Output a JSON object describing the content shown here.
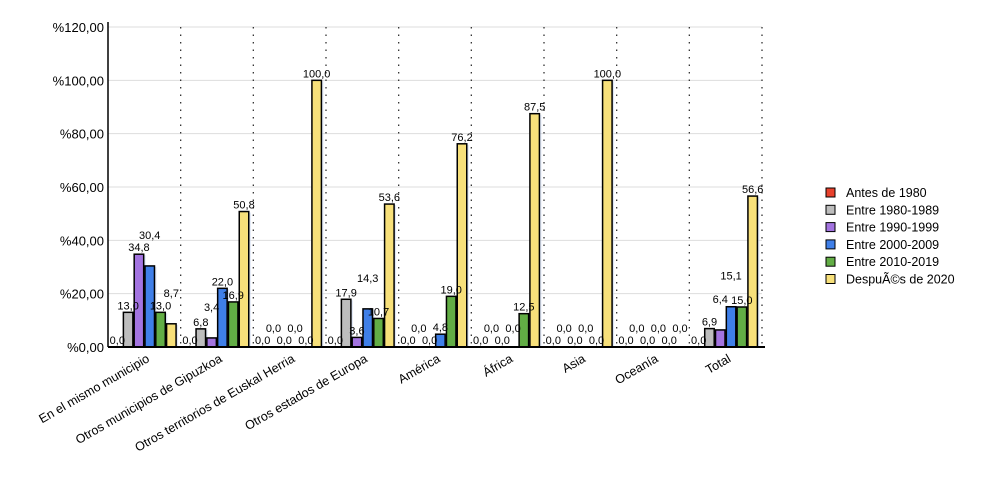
{
  "chart_data": {
    "type": "bar",
    "title": "",
    "xlabel": "",
    "ylabel": "",
    "ylim": [
      0,
      120
    ],
    "yticks": [
      "%0,00",
      "%20,00",
      "%40,00",
      "%60,00",
      "%80,00",
      "%100,00",
      "%120,00"
    ],
    "categories": [
      "En el mismo municipio",
      "Otros municipios de Gipuzkoa",
      "Otros territorios de Euskal Herria",
      "Otros estados de Europa",
      "América",
      "África",
      "Asia",
      "Oceanía",
      "Total"
    ],
    "legend_position": "right",
    "series": [
      {
        "name": "Antes de 1980",
        "color": "#e8412c",
        "values": [
          0,
          0,
          0,
          0,
          0,
          0,
          0,
          0,
          0
        ]
      },
      {
        "name": "Entre 1980-1989",
        "color": "#bdbdbd",
        "values": [
          13.0,
          6.8,
          0,
          17.9,
          0,
          0,
          0,
          0,
          6.9
        ]
      },
      {
        "name": "Entre 1990-1999",
        "color": "#a374e0",
        "values": [
          34.8,
          3.4,
          0,
          3.6,
          0,
          0,
          0,
          0,
          6.4
        ]
      },
      {
        "name": "Entre 2000-2009",
        "color": "#3f7fe8",
        "values": [
          30.4,
          22.0,
          0,
          14.3,
          4.8,
          0,
          0,
          0,
          15.1
        ]
      },
      {
        "name": "Entre 2010-2019",
        "color": "#62ad45",
        "values": [
          13.0,
          16.9,
          0,
          10.7,
          19.0,
          12.5,
          0,
          0,
          15.0
        ]
      },
      {
        "name": "DespuÃ©s de 2020",
        "color": "#f7e07a",
        "values": [
          8.7,
          50.8,
          100.0,
          53.6,
          76.2,
          87.5,
          100.0,
          0,
          56.6
        ]
      }
    ]
  }
}
